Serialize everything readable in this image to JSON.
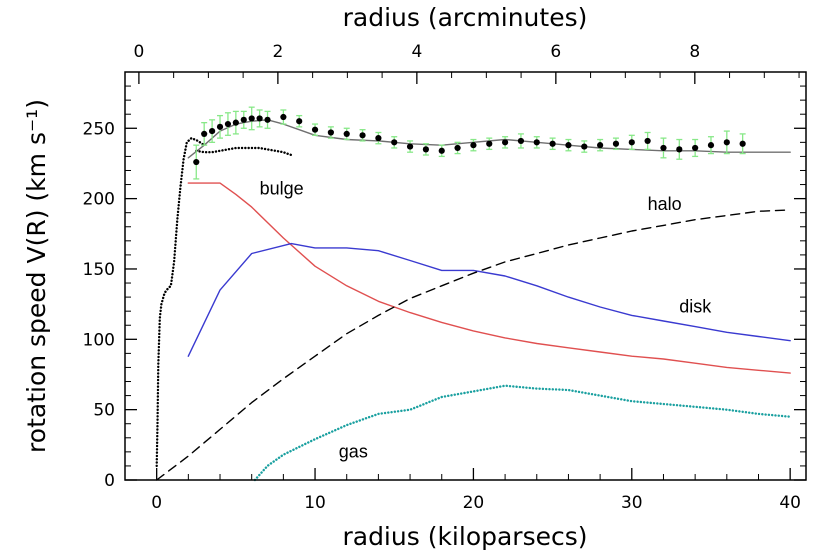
{
  "chart_data": {
    "type": "line",
    "title": "",
    "xlabel": "radius (kiloparsecs)",
    "x2label": "radius (arcminutes)",
    "ylabel": "rotation speed V(R) (km s⁻¹)",
    "xlim": [
      -2,
      41
    ],
    "ylim": [
      0,
      290
    ],
    "x2lim": [
      -0.2,
      9.6
    ],
    "xticks": [
      0,
      10,
      20,
      30,
      40
    ],
    "x2ticks": [
      0,
      2,
      4,
      6,
      8
    ],
    "yticks": [
      0,
      50,
      100,
      150,
      200,
      250
    ],
    "grid": false,
    "series": [
      {
        "name": "bulge",
        "style": "solid",
        "color": "#e05050",
        "x": [
          2,
          4,
          5,
          6,
          8,
          10,
          12,
          14,
          16,
          18,
          20,
          22,
          24,
          26,
          28,
          30,
          32,
          34,
          36,
          38,
          40
        ],
        "y": [
          211,
          211,
          203,
          194,
          172,
          152,
          138,
          127,
          119,
          112,
          106,
          101,
          97,
          94,
          91,
          88,
          86,
          83,
          80,
          78,
          76
        ]
      },
      {
        "name": "disk",
        "style": "solid",
        "color": "#3a3ad0",
        "x": [
          2,
          4,
          6,
          8.5,
          10,
          12,
          14,
          16,
          18,
          20,
          22,
          24,
          26,
          28,
          30,
          32,
          34,
          36,
          38,
          40
        ],
        "y": [
          88,
          135,
          161,
          168,
          165,
          165,
          163,
          156,
          149,
          149,
          145,
          138,
          130,
          123,
          117,
          113,
          109,
          105,
          102,
          99
        ]
      },
      {
        "name": "halo",
        "style": "dashed",
        "color": "#000000",
        "x": [
          0,
          2,
          4,
          6,
          8,
          10,
          12,
          14,
          16,
          18,
          20,
          22,
          24,
          26,
          28,
          30,
          32,
          34,
          36,
          38,
          40
        ],
        "y": [
          0,
          17,
          36,
          55,
          72,
          88,
          104,
          117,
          129,
          138,
          147,
          155,
          161,
          167,
          172,
          177,
          181,
          185,
          188,
          191,
          192
        ]
      },
      {
        "name": "gas",
        "style": "dotted",
        "color": "#1aa0a0",
        "x": [
          6.2,
          7,
          8,
          10,
          12,
          14,
          16,
          18,
          20,
          22,
          24,
          26,
          28,
          30,
          32,
          34,
          36,
          38,
          40
        ],
        "y": [
          0,
          10,
          18,
          29,
          39,
          47,
          50,
          59,
          63,
          67,
          65,
          64,
          60,
          56,
          54,
          52,
          50,
          47,
          45
        ]
      },
      {
        "name": "",
        "style": "solid",
        "color": "#707070",
        "x": [
          2,
          3,
          4,
          5,
          6,
          7,
          8,
          9,
          10,
          12,
          14,
          16,
          18,
          20,
          22,
          24,
          26,
          28,
          30,
          32,
          34,
          36,
          38,
          40
        ],
        "y": [
          229,
          238,
          248,
          253,
          255,
          256,
          253,
          249,
          245,
          242,
          241,
          239,
          238,
          240,
          242,
          240,
          238,
          236,
          235,
          234,
          234,
          233,
          233,
          233
        ]
      },
      {
        "name": "",
        "style": "dotted",
        "color": "#000000",
        "x": [
          0,
          0.05,
          0.1,
          0.2,
          0.3,
          0.5,
          0.7,
          0.9,
          1.1,
          1.3,
          1.5,
          1.7,
          1.9,
          2.2,
          2.6,
          3.0
        ],
        "y": [
          10,
          40,
          82,
          115,
          125,
          133,
          136,
          138,
          155,
          185,
          208,
          228,
          240,
          243,
          241,
          238
        ]
      },
      {
        "name": "",
        "style": "dotted",
        "color": "#000000",
        "x": [
          2.5,
          3,
          3.5,
          4,
          4.5,
          5,
          5.5,
          6,
          6.5,
          7,
          7.5,
          8,
          8.5
        ],
        "y": [
          234,
          233,
          233,
          234,
          235,
          236,
          236,
          236,
          236,
          235,
          234,
          233,
          231
        ]
      }
    ],
    "observations": {
      "color": "#000000",
      "errorbar_color": "#88e888",
      "x": [
        2.5,
        3,
        3.5,
        4,
        4.5,
        5,
        5.5,
        6,
        6.5,
        7,
        8,
        9,
        10,
        11,
        12,
        13,
        14,
        15,
        16,
        17,
        18,
        19,
        20,
        21,
        22,
        23,
        24,
        25,
        26,
        27,
        28,
        29,
        30,
        31,
        32,
        33,
        34,
        35,
        36,
        37
      ],
      "y": [
        226,
        246,
        248,
        251,
        253,
        254,
        256,
        257,
        257,
        256,
        258,
        255,
        249,
        247,
        246,
        245,
        243,
        240,
        237,
        235,
        234,
        236,
        238,
        239,
        240,
        241,
        240,
        239,
        238,
        237,
        238,
        239,
        240,
        241,
        236,
        235,
        236,
        238,
        240,
        239
      ],
      "err": [
        12,
        8,
        8,
        8,
        8,
        8,
        6,
        8,
        6,
        6,
        5,
        4,
        4,
        4,
        4,
        4,
        4,
        4,
        4,
        4,
        4,
        4,
        4,
        4,
        4,
        5,
        4,
        4,
        4,
        4,
        4,
        4,
        5,
        6,
        7,
        7,
        6,
        6,
        8,
        7
      ]
    },
    "annotations": [
      {
        "text": "bulge",
        "x": 6.5,
        "y": 203
      },
      {
        "text": "halo",
        "x": 31,
        "y": 192
      },
      {
        "text": "disk",
        "x": 33,
        "y": 119
      },
      {
        "text": "gas",
        "x": 11.5,
        "y": 16
      }
    ]
  }
}
